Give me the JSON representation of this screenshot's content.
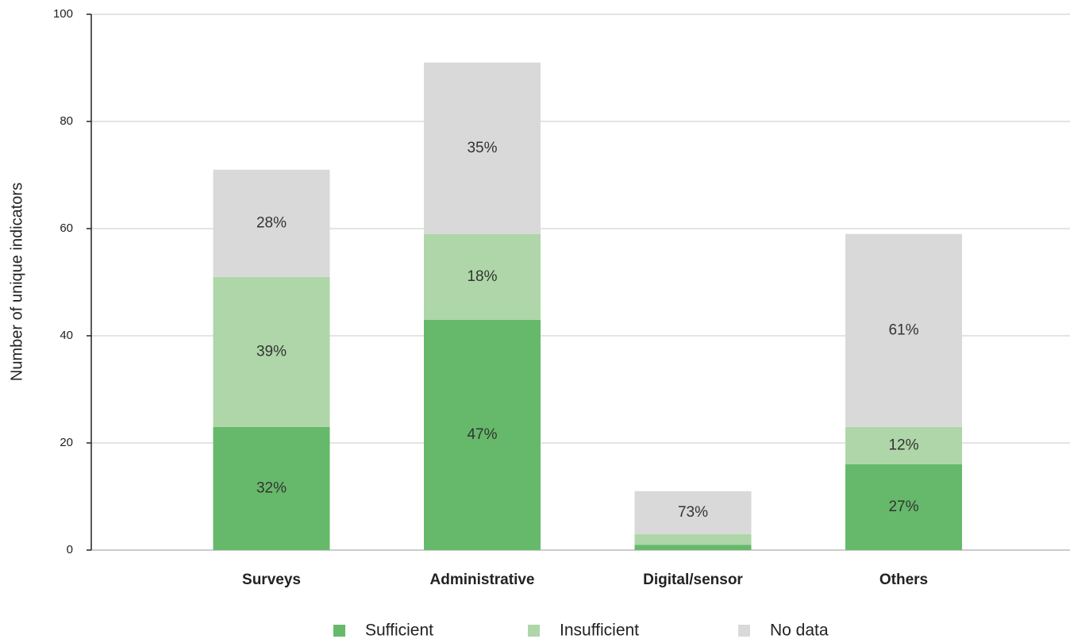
{
  "chart_data": {
    "type": "stacked_bar",
    "y_label": "Number of unique indicators",
    "categories": [
      "Surveys",
      "Administrative",
      "Digital/sensor",
      "Others"
    ],
    "series": [
      {
        "name": "Sufficient",
        "color": "#66b96a",
        "values": [
          23,
          43,
          1,
          16
        ],
        "labels": [
          "32%",
          "47%",
          null,
          "27%"
        ]
      },
      {
        "name": "Insufficient",
        "color": "#aed6a8",
        "values": [
          28,
          16,
          2,
          7
        ],
        "labels": [
          "39%",
          "18%",
          null,
          "12%"
        ]
      },
      {
        "name": "No data",
        "color": "#d9d9d9",
        "values": [
          20,
          32,
          8,
          36
        ],
        "labels": [
          "28%",
          "35%",
          "73%",
          "61%"
        ]
      }
    ],
    "ylim": [
      0,
      100
    ],
    "yticks": [
      0,
      20,
      40,
      60,
      80,
      100
    ],
    "grid": true,
    "legend": "bottom"
  }
}
